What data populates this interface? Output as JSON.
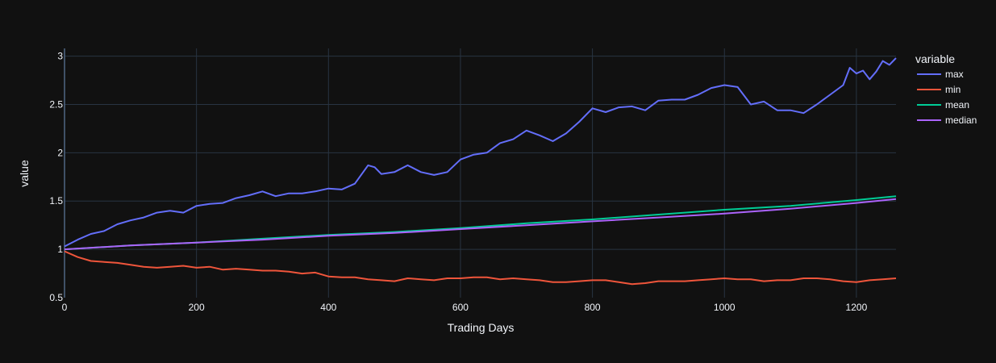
{
  "chart_data": {
    "type": "line",
    "title": "",
    "xlabel": "Trading Days",
    "ylabel": "value",
    "xlim": [
      0,
      1260
    ],
    "ylim": [
      0.5,
      3.08
    ],
    "xticks": [
      0,
      200,
      400,
      600,
      800,
      1000,
      1200
    ],
    "yticks": [
      0.5,
      1,
      1.5,
      2,
      2.5,
      3
    ],
    "xtick_labels": [
      "0",
      "200",
      "400",
      "600",
      "800",
      "1000",
      "1200"
    ],
    "ytick_labels": [
      "0.5",
      "1",
      "1.5",
      "2",
      "2.5",
      "3"
    ],
    "grid": true,
    "legend": {
      "title": "variable",
      "position": "right"
    },
    "series": [
      {
        "name": "max",
        "color": "#636efa",
        "x": [
          0,
          20,
          40,
          60,
          80,
          100,
          120,
          140,
          160,
          180,
          200,
          220,
          240,
          260,
          280,
          300,
          320,
          340,
          360,
          380,
          400,
          420,
          440,
          460,
          470,
          480,
          500,
          520,
          540,
          560,
          580,
          600,
          620,
          640,
          660,
          680,
          700,
          720,
          740,
          760,
          780,
          800,
          820,
          840,
          860,
          880,
          900,
          920,
          940,
          960,
          980,
          1000,
          1020,
          1040,
          1060,
          1080,
          1100,
          1120,
          1140,
          1160,
          1180,
          1190,
          1200,
          1210,
          1220,
          1230,
          1240,
          1250,
          1260
        ],
        "values": [
          1.03,
          1.1,
          1.16,
          1.19,
          1.26,
          1.3,
          1.33,
          1.38,
          1.4,
          1.38,
          1.45,
          1.47,
          1.48,
          1.53,
          1.56,
          1.6,
          1.55,
          1.58,
          1.58,
          1.6,
          1.63,
          1.62,
          1.68,
          1.87,
          1.85,
          1.78,
          1.8,
          1.87,
          1.8,
          1.77,
          1.8,
          1.93,
          1.98,
          2.0,
          2.1,
          2.14,
          2.23,
          2.18,
          2.12,
          2.2,
          2.32,
          2.46,
          2.42,
          2.47,
          2.48,
          2.44,
          2.54,
          2.55,
          2.55,
          2.6,
          2.67,
          2.7,
          2.68,
          2.5,
          2.53,
          2.44,
          2.44,
          2.41,
          2.5,
          2.6,
          2.7,
          2.88,
          2.82,
          2.85,
          2.76,
          2.84,
          2.95,
          2.91,
          2.98
        ]
      },
      {
        "name": "min",
        "color": "#ef553b",
        "x": [
          0,
          20,
          40,
          60,
          80,
          100,
          120,
          140,
          160,
          180,
          200,
          220,
          240,
          260,
          280,
          300,
          320,
          340,
          360,
          380,
          400,
          420,
          440,
          460,
          480,
          500,
          520,
          540,
          560,
          580,
          600,
          620,
          640,
          660,
          680,
          700,
          720,
          740,
          760,
          780,
          800,
          820,
          840,
          860,
          880,
          900,
          920,
          940,
          960,
          980,
          1000,
          1020,
          1040,
          1060,
          1080,
          1100,
          1120,
          1140,
          1160,
          1180,
          1200,
          1220,
          1240,
          1260
        ],
        "values": [
          0.98,
          0.92,
          0.88,
          0.87,
          0.86,
          0.84,
          0.82,
          0.81,
          0.82,
          0.83,
          0.81,
          0.82,
          0.79,
          0.8,
          0.79,
          0.78,
          0.78,
          0.77,
          0.75,
          0.76,
          0.72,
          0.71,
          0.71,
          0.69,
          0.68,
          0.67,
          0.7,
          0.69,
          0.68,
          0.7,
          0.7,
          0.71,
          0.71,
          0.69,
          0.7,
          0.69,
          0.68,
          0.66,
          0.66,
          0.67,
          0.68,
          0.68,
          0.66,
          0.64,
          0.65,
          0.67,
          0.67,
          0.67,
          0.68,
          0.69,
          0.7,
          0.69,
          0.69,
          0.67,
          0.68,
          0.68,
          0.7,
          0.7,
          0.69,
          0.67,
          0.66,
          0.68,
          0.69,
          0.7
        ]
      },
      {
        "name": "mean",
        "color": "#00cc96",
        "x": [
          0,
          100,
          200,
          300,
          400,
          500,
          600,
          700,
          800,
          900,
          1000,
          1100,
          1200,
          1260
        ],
        "values": [
          1.0,
          1.04,
          1.07,
          1.11,
          1.15,
          1.18,
          1.22,
          1.27,
          1.31,
          1.36,
          1.41,
          1.45,
          1.51,
          1.55
        ]
      },
      {
        "name": "median",
        "color": "#ab63fa",
        "x": [
          0,
          100,
          200,
          300,
          400,
          500,
          600,
          700,
          800,
          900,
          1000,
          1100,
          1200,
          1260
        ],
        "values": [
          1.0,
          1.04,
          1.07,
          1.1,
          1.14,
          1.17,
          1.21,
          1.25,
          1.29,
          1.33,
          1.37,
          1.42,
          1.48,
          1.52
        ]
      }
    ]
  }
}
